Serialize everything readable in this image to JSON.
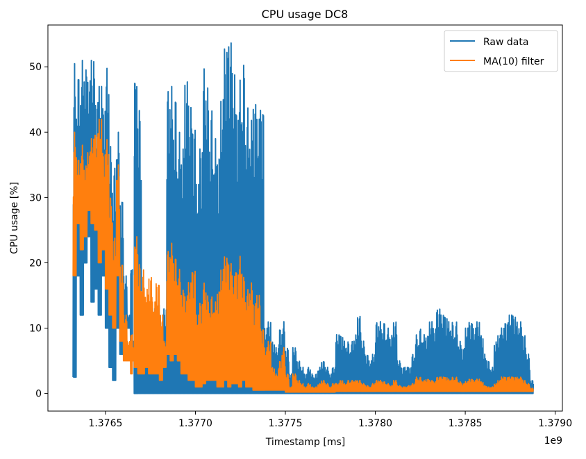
{
  "chart_data": {
    "type": "line",
    "title": "CPU usage DC8",
    "xlabel": "Timestamp [ms]",
    "ylabel": "CPU usage [%]",
    "x_offset_label": "1e9",
    "xlim": [
      1.37618,
      1.37904
    ],
    "ylim": [
      -2.7,
      56.4
    ],
    "x_ticks": [
      1.3765,
      1.377,
      1.3775,
      1.378,
      1.3785,
      1.379
    ],
    "x_tick_labels": [
      "1.3765",
      "1.3770",
      "1.3775",
      "1.3780",
      "1.3785",
      "1.3790"
    ],
    "y_ticks": [
      0,
      10,
      20,
      30,
      40,
      50
    ],
    "y_tick_labels": [
      "0",
      "10",
      "20",
      "30",
      "40",
      "50"
    ],
    "grid": false,
    "legend_position": "top-right",
    "series": [
      {
        "name": "Raw data",
        "color": "#1f77b4",
        "x": [
          1.37632,
          1.37634,
          1.37636,
          1.37638,
          1.3764,
          1.37642,
          1.37644,
          1.37646,
          1.37648,
          1.3765,
          1.37652,
          1.37654,
          1.37656,
          1.37658,
          1.3766,
          1.37662,
          1.37664,
          1.37665,
          1.37666,
          1.37667,
          1.37668,
          1.3767,
          1.37672,
          1.37674,
          1.37676,
          1.37678,
          1.3768,
          1.37682,
          1.37684,
          1.37686,
          1.37688,
          1.3769,
          1.37692,
          1.37694,
          1.37696,
          1.37698,
          1.377,
          1.37702,
          1.37704,
          1.37706,
          1.37708,
          1.3771,
          1.37712,
          1.37714,
          1.37716,
          1.37718,
          1.3772,
          1.37722,
          1.37724,
          1.37726,
          1.37728,
          1.3773,
          1.37732,
          1.37734,
          1.37736,
          1.37738,
          1.3774,
          1.37742,
          1.37744,
          1.37746,
          1.37748,
          1.3775,
          1.37752,
          1.37754,
          1.37756,
          1.37758,
          1.3776,
          1.37762,
          1.37764,
          1.37766,
          1.37768,
          1.3777,
          1.37772,
          1.37774,
          1.37776,
          1.37778,
          1.3778,
          1.37782,
          1.37784,
          1.37786,
          1.37788,
          1.3779,
          1.37792,
          1.37794,
          1.37796,
          1.37798,
          1.378,
          1.37802,
          1.37804,
          1.37806,
          1.37808,
          1.3781,
          1.37812,
          1.37814,
          1.37816,
          1.37818,
          1.3782,
          1.37822,
          1.37824,
          1.37826,
          1.37828,
          1.3783,
          1.37832,
          1.37834,
          1.37836,
          1.37838,
          1.3784,
          1.37842,
          1.37844,
          1.37846,
          1.37848,
          1.3785,
          1.37852,
          1.37854,
          1.37856,
          1.37858,
          1.3786,
          1.37862,
          1.37864,
          1.37866,
          1.37868,
          1.3787,
          1.37872,
          1.37874,
          1.37876,
          1.37878,
          1.3788,
          1.37882,
          1.37884,
          1.37886,
          1.37888,
          1.3789
        ],
        "y_max": [
          50.5,
          49,
          51,
          50,
          48,
          51,
          45,
          47,
          44,
          50,
          38,
          35,
          40,
          30,
          18,
          12,
          19,
          8,
          49,
          47,
          44,
          14,
          13,
          14,
          13,
          14,
          12,
          13,
          47,
          47,
          46,
          40,
          38,
          48,
          44,
          41,
          32,
          38,
          50,
          47,
          44,
          39,
          37,
          45,
          53,
          54,
          49,
          44,
          48,
          51,
          44,
          42,
          45,
          42,
          44,
          10,
          11,
          8,
          7,
          10,
          11,
          7,
          3,
          7,
          5,
          4,
          3,
          4,
          3,
          3,
          4,
          5,
          4,
          3,
          4,
          9,
          9,
          8,
          8,
          8,
          9,
          12,
          8,
          6,
          5,
          6,
          11,
          11,
          11,
          10,
          9,
          11,
          5,
          4,
          4,
          4,
          6,
          9,
          10,
          9,
          9,
          11,
          10,
          13,
          12,
          12,
          11,
          11,
          11,
          8,
          7,
          10,
          11,
          10,
          11,
          9,
          6,
          5,
          4,
          8,
          9,
          10,
          11,
          12,
          12,
          11,
          11,
          9,
          6,
          2
        ],
        "y_min": [
          2.5,
          18,
          12,
          20,
          24,
          14,
          16,
          12,
          18,
          10,
          4,
          2,
          10,
          6,
          6,
          10,
          6,
          6,
          0,
          0,
          0,
          0,
          0,
          0,
          0,
          0,
          0,
          0,
          0,
          0,
          0,
          0,
          0,
          0,
          0,
          0,
          0,
          0,
          0,
          0,
          0,
          0,
          0,
          0,
          0,
          0,
          0,
          0,
          0,
          0,
          0,
          0,
          0,
          0,
          0,
          0,
          0,
          0,
          0,
          0,
          0,
          0,
          0,
          0,
          0,
          0,
          0,
          0,
          0,
          0,
          0,
          0,
          0,
          0,
          0,
          0,
          0,
          0,
          0,
          0,
          0,
          0,
          0,
          0,
          0,
          0,
          0,
          0,
          0,
          0,
          0,
          0,
          0,
          0,
          0,
          0,
          0,
          0,
          0,
          0,
          0,
          0,
          0,
          0,
          0,
          0,
          0,
          0,
          0,
          0,
          0,
          0,
          0,
          0,
          0,
          0,
          0,
          0,
          0,
          0,
          0,
          0,
          0,
          0,
          0,
          0,
          0,
          0,
          0,
          0
        ]
      },
      {
        "name": "MA(10) filter",
        "color": "#ff7f0e",
        "x": [
          1.37632,
          1.37634,
          1.37636,
          1.37638,
          1.3764,
          1.37642,
          1.37644,
          1.37646,
          1.37648,
          1.3765,
          1.37652,
          1.37654,
          1.37656,
          1.37658,
          1.3766,
          1.37662,
          1.37664,
          1.37665,
          1.37666,
          1.37667,
          1.37668,
          1.3767,
          1.37672,
          1.37674,
          1.37676,
          1.37678,
          1.3768,
          1.37682,
          1.37684,
          1.37686,
          1.37688,
          1.3769,
          1.37692,
          1.37694,
          1.37696,
          1.37698,
          1.377,
          1.37702,
          1.37704,
          1.37706,
          1.37708,
          1.3771,
          1.37712,
          1.37714,
          1.37716,
          1.37718,
          1.3772,
          1.37722,
          1.37724,
          1.37726,
          1.37728,
          1.3773,
          1.37732,
          1.37734,
          1.37736,
          1.37738,
          1.3774,
          1.37742,
          1.37744,
          1.37746,
          1.37748,
          1.3775,
          1.37752,
          1.37754,
          1.37756,
          1.37758,
          1.3776,
          1.37762,
          1.37764,
          1.37766,
          1.37768,
          1.3777,
          1.37772,
          1.37774,
          1.37776,
          1.37778,
          1.3778,
          1.37782,
          1.37784,
          1.37786,
          1.37788,
          1.3779,
          1.37792,
          1.37794,
          1.37796,
          1.37798,
          1.378,
          1.37802,
          1.37804,
          1.37806,
          1.37808,
          1.3781,
          1.37812,
          1.37814,
          1.37816,
          1.37818,
          1.3782,
          1.37822,
          1.37824,
          1.37826,
          1.37828,
          1.3783,
          1.37832,
          1.37834,
          1.37836,
          1.37838,
          1.3784,
          1.37842,
          1.37844,
          1.37846,
          1.37848,
          1.3785,
          1.37852,
          1.37854,
          1.37856,
          1.37858,
          1.3786,
          1.37862,
          1.37864,
          1.37866,
          1.37868,
          1.3787,
          1.37872,
          1.37874,
          1.37876,
          1.37878,
          1.3788,
          1.37882,
          1.37884,
          1.37886,
          1.37888,
          1.3789
        ],
        "y_max": [
          40,
          36,
          38,
          35,
          37,
          39,
          40,
          42,
          37,
          39,
          30,
          24,
          35,
          20,
          12,
          8,
          9,
          7,
          23,
          24,
          20,
          19,
          16,
          18,
          14,
          17,
          12,
          8,
          22,
          23,
          21,
          19,
          16,
          15,
          17,
          19,
          12,
          14,
          17,
          15,
          15,
          14,
          16,
          19,
          21,
          20,
          18,
          19,
          21,
          18,
          16,
          17,
          14,
          15,
          10,
          7,
          8,
          4,
          3,
          5,
          7,
          3,
          1,
          3,
          2,
          1.5,
          1,
          1.5,
          1,
          1,
          1.5,
          2,
          1.5,
          1,
          1.5,
          1.5,
          2,
          1.5,
          2,
          2,
          2,
          2,
          1.5,
          1.2,
          1,
          1.5,
          2,
          2,
          1.8,
          1.5,
          1.2,
          2,
          1.2,
          1,
          1,
          1.2,
          1.5,
          2.5,
          2.5,
          2,
          2.2,
          2,
          1.8,
          2.5,
          2.5,
          2.5,
          2.2,
          2.5,
          2.5,
          1.8,
          1.5,
          1.8,
          2.2,
          2,
          2.2,
          1.8,
          1.2,
          1,
          1,
          1.5,
          2,
          2.5,
          2.5,
          2.5,
          2.5,
          2.5,
          2.5,
          2,
          1.5,
          0.8
        ],
        "y_min": [
          18,
          26,
          22,
          24,
          28,
          26,
          25,
          20,
          22,
          16,
          12,
          10,
          18,
          8,
          5,
          5,
          3,
          5,
          4,
          4,
          3,
          3,
          4,
          3,
          3,
          3,
          2,
          4,
          6,
          5,
          6,
          5,
          3,
          3,
          2,
          2,
          1,
          1,
          1.5,
          2,
          2,
          2,
          1,
          1,
          2,
          1,
          1.5,
          1.5,
          1,
          2,
          1,
          1,
          0.5,
          0.5,
          0.5,
          0.5,
          0.5,
          0.5,
          0.5,
          0.5,
          0.5,
          0.2,
          0.2,
          0.2,
          0.2,
          0.2,
          0.2,
          0.2,
          0.2,
          0.2,
          0.2,
          0.2,
          0.2,
          0.2,
          0.2,
          0.3,
          0.3,
          0.3,
          0.3,
          0.3,
          0.3,
          0.3,
          0.3,
          0.3,
          0.3,
          0.3,
          0.3,
          0.3,
          0.3,
          0.3,
          0.3,
          0.3,
          0.3,
          0.3,
          0.3,
          0.3,
          0.3,
          0.3,
          0.3,
          0.3,
          0.3,
          0.3,
          0.3,
          0.3,
          0.3,
          0.3,
          0.3,
          0.3,
          0.3,
          0.3,
          0.3,
          0.3,
          0.3,
          0.3,
          0.3,
          0.3,
          0.3,
          0.3,
          0.3,
          0.3,
          0.3,
          0.3,
          0.3,
          0.3,
          0.3,
          0.3,
          0.3,
          0.3,
          0.3,
          0.3
        ]
      }
    ]
  }
}
